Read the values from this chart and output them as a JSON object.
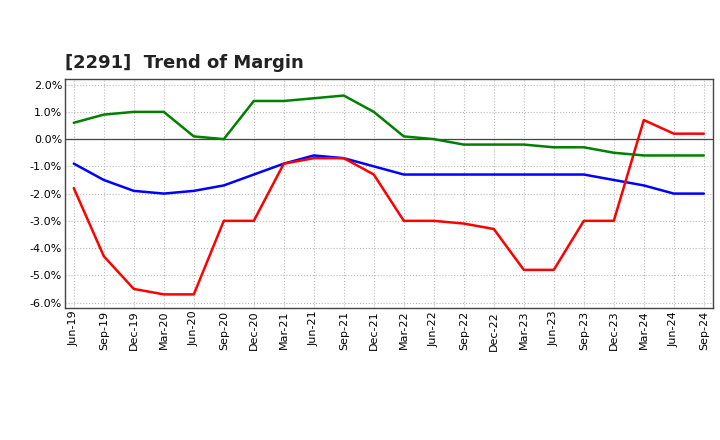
{
  "title": "[2291]  Trend of Margin",
  "x_labels": [
    "Jun-19",
    "Sep-19",
    "Dec-19",
    "Mar-20",
    "Jun-20",
    "Sep-20",
    "Dec-20",
    "Mar-21",
    "Jun-21",
    "Sep-21",
    "Dec-21",
    "Mar-22",
    "Jun-22",
    "Sep-22",
    "Dec-22",
    "Mar-23",
    "Jun-23",
    "Sep-23",
    "Dec-23",
    "Mar-24",
    "Jun-24",
    "Sep-24"
  ],
  "ordinary_income": [
    -0.009,
    -0.015,
    -0.019,
    -0.02,
    -0.019,
    -0.017,
    -0.013,
    -0.009,
    -0.006,
    -0.007,
    -0.01,
    -0.013,
    -0.013,
    -0.013,
    -0.013,
    -0.013,
    -0.013,
    -0.013,
    -0.015,
    -0.017,
    -0.02,
    -0.02
  ],
  "net_income": [
    -0.018,
    -0.043,
    -0.055,
    -0.057,
    -0.057,
    -0.03,
    -0.03,
    -0.009,
    -0.007,
    -0.007,
    -0.013,
    -0.03,
    -0.03,
    -0.031,
    -0.033,
    -0.048,
    -0.048,
    -0.03,
    -0.03,
    0.007,
    0.002,
    0.002
  ],
  "operating_cashflow": [
    0.006,
    0.009,
    0.01,
    0.01,
    0.001,
    0.0,
    0.014,
    0.014,
    0.015,
    0.016,
    0.01,
    0.001,
    0.0,
    -0.002,
    -0.002,
    -0.002,
    -0.003,
    -0.003,
    -0.005,
    -0.006,
    -0.006,
    -0.006
  ],
  "ordinary_income_color": "#0000ff",
  "net_income_color": "#ff0000",
  "operating_cashflow_color": "#008000",
  "ylim": [
    -0.062,
    0.022
  ],
  "yticks": [
    -0.06,
    -0.05,
    -0.04,
    -0.03,
    -0.02,
    -0.01,
    0.0,
    0.01,
    0.02
  ],
  "background_color": "#ffffff",
  "grid_color": "#bbbbbb",
  "title_fontsize": 13,
  "axis_fontsize": 8,
  "legend_fontsize": 9,
  "line_width": 1.8
}
